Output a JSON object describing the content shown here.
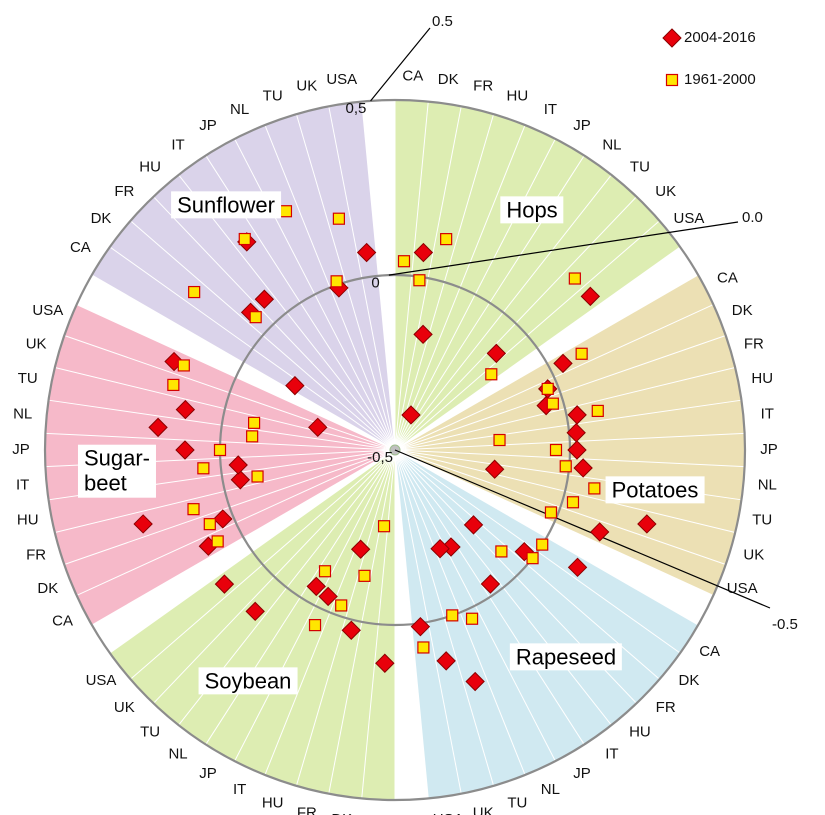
{
  "chart_data": {
    "type": "polar-scatter",
    "groups": [
      "Hops",
      "Potatoes",
      "Rapeseed",
      "Soybean",
      "Sugar-beet",
      "Sunflower"
    ],
    "group_colors": [
      "#ddedb2",
      "#ece0b4",
      "#d0e9f1",
      "#ddedb2",
      "#f6b9c9",
      "#dad3ea"
    ],
    "categories": [
      "CA",
      "DK",
      "FR",
      "HU",
      "IT",
      "JP",
      "NL",
      "TU",
      "UK",
      "USA"
    ],
    "ylim": [
      -0.5,
      0.5
    ],
    "yticks": [
      {
        "value": -0.5,
        "label": "-0,5"
      },
      0,
      {
        "value": 0.5,
        "label": "0,5"
      }
    ],
    "legend": "top-right",
    "series": [
      {
        "name": "2004-2016",
        "color": "#e8000b",
        "marker": "diamond",
        "values": [
          null,
          0.07,
          -0.16,
          null,
          -0.39,
          null,
          null,
          null,
          -0.1,
          0.21,
          0.04,
          -0.03,
          -0.05,
          0.03,
          0.02,
          0.02,
          0.04,
          -0.21,
          0.25,
          0.13,
          0.12,
          -0.03,
          -0.19,
          null,
          -0.03,
          -0.18,
          -0.19,
          0.2,
          0.12,
          0.01,
          0.11,
          null,
          0.03,
          -0.2,
          -0.04,
          -0.05,
          null,
          0.11,
          null,
          0.12,
          0.1,
          0.03,
          0.25,
          -0.05,
          -0.05,
          0.1,
          0.18,
          0.11,
          -0.27,
          0.18,
          -0.16,
          null,
          0.07,
          0.07,
          0.23,
          null,
          null,
          -0.01,
          null,
          0.07
        ]
      },
      {
        "name": "1961-2000",
        "color": "#ffe600",
        "marker": "square",
        "values": [
          0.04,
          -0.01,
          0.12,
          null,
          null,
          null,
          null,
          null,
          0.21,
          -0.15,
          0.1,
          -0.03,
          -0.03,
          0.09,
          -0.2,
          -0.04,
          -0.01,
          0.08,
          0.03,
          -0.02,
          0,
          0,
          -0.08,
          null,
          null,
          null,
          0.03,
          0,
          null,
          0.07,
          null,
          -0.28,
          -0.13,
          -0.03,
          0.05,
          -0.1,
          null,
          null,
          null,
          null,
          0.07,
          0.07,
          0.1,
          -0.1,
          0.05,
          0,
          -0.09,
          -0.09,
          0.16,
          0.15,
          null,
          0.23,
          0.05,
          null,
          0.24,
          null,
          0.25,
          0.01,
          0.18,
          null
        ]
      }
    ],
    "annotations": [
      {
        "text": "0.5",
        "value": 0.5
      },
      {
        "text": "0.0",
        "value": 0
      },
      {
        "text": "-0.5",
        "value": -0.5
      }
    ]
  }
}
